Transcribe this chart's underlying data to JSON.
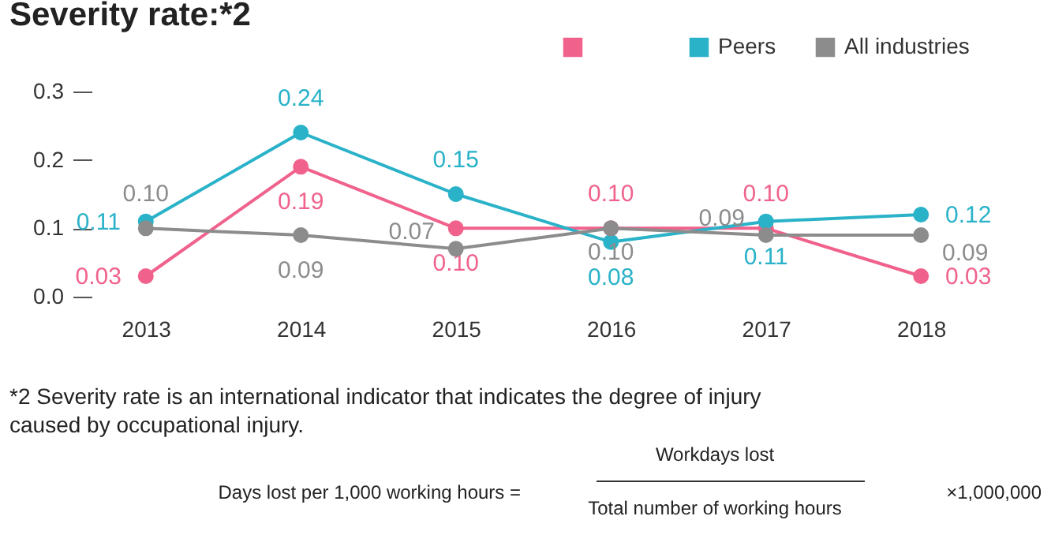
{
  "chart_data": {
    "type": "line",
    "title": "Severity rate:*2",
    "categories": [
      "2013",
      "2014",
      "2015",
      "2016",
      "2017",
      "2018"
    ],
    "series": [
      {
        "color": "#f0628c",
        "values": [
          0.03,
          0.19,
          0.1,
          0.1,
          0.1,
          0.03
        ],
        "value_labels": [
          "0.03",
          "0.19",
          "0.10",
          "0.10",
          "0.10",
          "0.03"
        ]
      },
      {
        "name": "Peers",
        "color": "#29b2c8",
        "values": [
          0.11,
          0.24,
          0.15,
          0.08,
          0.11,
          0.12
        ],
        "value_labels": [
          "0.11",
          "0.24",
          "0.15",
          "0.08",
          "0.11",
          "0.12"
        ]
      },
      {
        "name": "All industries",
        "color": "#8c8c8c",
        "values": [
          0.1,
          0.09,
          0.07,
          0.1,
          0.09,
          0.09
        ],
        "value_labels": [
          "0.10",
          "0.09",
          "0.07",
          "0.10",
          "0.09",
          "0.09"
        ]
      }
    ],
    "ylim": [
      0,
      0.3
    ],
    "yticks": [
      {
        "value": 0,
        "label": "0.0"
      },
      {
        "value": 0.1,
        "label": "0.1"
      },
      {
        "value": 0.2,
        "label": "0.2"
      },
      {
        "value": 0.3,
        "label": "0.3"
      }
    ],
    "legend": "top right",
    "marker": "circle",
    "line_style": "solid",
    "annotations": [
      "*2 Severity rate is an international indicator that indicates the degree of injury caused by occupational injury.",
      "Days lost per 1,000 working hours =",
      "Workdays lost",
      "Total number of working hours",
      "×1,000,000"
    ]
  }
}
